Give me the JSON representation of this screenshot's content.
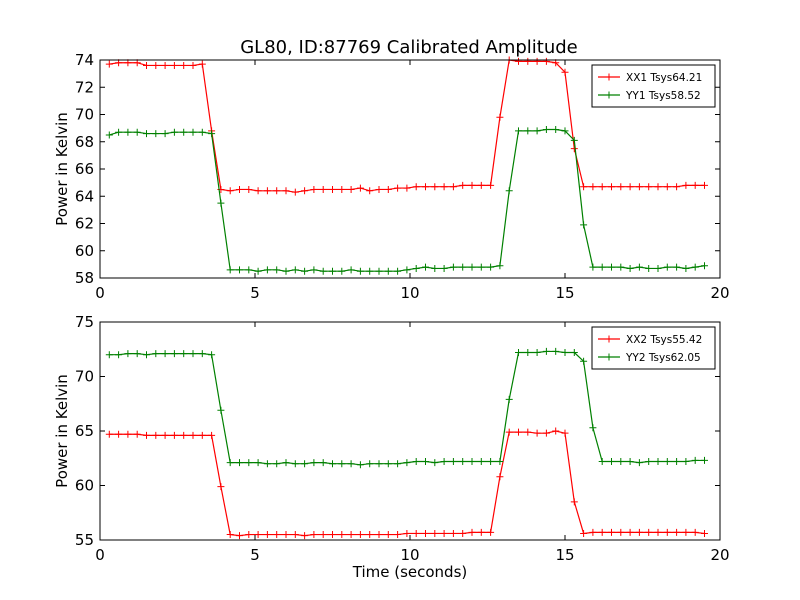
{
  "figure": {
    "title": "GL80, ID:87769 Calibrated Amplitude"
  },
  "chart_data": [
    {
      "type": "line",
      "title": "GL80, ID:87769 Calibrated Amplitude",
      "xlabel": "",
      "ylabel": "Power in Kelvin",
      "xlim": [
        0,
        20
      ],
      "ylim": [
        58,
        74
      ],
      "xticks": [
        0,
        5,
        10,
        15,
        20
      ],
      "yticks": [
        58,
        60,
        62,
        64,
        66,
        68,
        70,
        72,
        74
      ],
      "grid": false,
      "legend_position": "top-right",
      "x": [
        0.3,
        0.6,
        0.9,
        1.2,
        1.5,
        1.8,
        2.1,
        2.4,
        2.7,
        3.0,
        3.3,
        3.6,
        3.9,
        4.2,
        4.5,
        4.8,
        5.1,
        5.4,
        5.7,
        6.0,
        6.3,
        6.6,
        6.9,
        7.2,
        7.5,
        7.8,
        8.1,
        8.4,
        8.7,
        9.0,
        9.3,
        9.6,
        9.9,
        10.2,
        10.5,
        10.8,
        11.1,
        11.4,
        11.7,
        12.0,
        12.3,
        12.6,
        12.9,
        13.2,
        13.5,
        13.8,
        14.1,
        14.4,
        14.7,
        15.0,
        15.3,
        15.6,
        15.9,
        16.2,
        16.5,
        16.8,
        17.1,
        17.4,
        17.7,
        18.0,
        18.3,
        18.6,
        18.9,
        19.2,
        19.5
      ],
      "series": [
        {
          "name": "XX1 Tsys64.21",
          "color": "#ff0000",
          "values": [
            73.7,
            73.8,
            73.8,
            73.8,
            73.6,
            73.6,
            73.6,
            73.6,
            73.6,
            73.6,
            73.7,
            68.8,
            64.5,
            64.4,
            64.5,
            64.5,
            64.4,
            64.4,
            64.4,
            64.4,
            64.3,
            64.4,
            64.5,
            64.5,
            64.5,
            64.5,
            64.5,
            64.6,
            64.4,
            64.5,
            64.5,
            64.6,
            64.6,
            64.7,
            64.7,
            64.7,
            64.7,
            64.7,
            64.8,
            64.8,
            64.8,
            64.8,
            69.8,
            74.0,
            73.9,
            73.9,
            73.9,
            73.9,
            73.8,
            73.1,
            67.5,
            64.7,
            64.7,
            64.7,
            64.7,
            64.7,
            64.7,
            64.7,
            64.7,
            64.7,
            64.7,
            64.7,
            64.8,
            64.8,
            64.8
          ]
        },
        {
          "name": "YY1 Tsys58.52",
          "color": "#008000",
          "values": [
            68.5,
            68.7,
            68.7,
            68.7,
            68.6,
            68.6,
            68.6,
            68.7,
            68.7,
            68.7,
            68.7,
            68.6,
            63.5,
            58.6,
            58.6,
            58.6,
            58.5,
            58.6,
            58.6,
            58.5,
            58.6,
            58.5,
            58.6,
            58.5,
            58.5,
            58.5,
            58.6,
            58.5,
            58.5,
            58.5,
            58.5,
            58.5,
            58.6,
            58.7,
            58.8,
            58.7,
            58.7,
            58.8,
            58.8,
            58.8,
            58.8,
            58.8,
            58.9,
            64.4,
            68.8,
            68.8,
            68.8,
            68.9,
            68.9,
            68.8,
            68.1,
            61.9,
            58.8,
            58.8,
            58.8,
            58.8,
            58.7,
            58.8,
            58.7,
            58.7,
            58.8,
            58.8,
            58.7,
            58.8,
            58.9
          ]
        }
      ]
    },
    {
      "type": "line",
      "title": "",
      "xlabel": "Time (seconds)",
      "ylabel": "Power in Kelvin",
      "xlim": [
        0,
        20
      ],
      "ylim": [
        55,
        75
      ],
      "xticks": [
        0,
        5,
        10,
        15,
        20
      ],
      "yticks": [
        55,
        60,
        65,
        70,
        75
      ],
      "grid": false,
      "legend_position": "top-right",
      "x": [
        0.3,
        0.6,
        0.9,
        1.2,
        1.5,
        1.8,
        2.1,
        2.4,
        2.7,
        3.0,
        3.3,
        3.6,
        3.9,
        4.2,
        4.5,
        4.8,
        5.1,
        5.4,
        5.7,
        6.0,
        6.3,
        6.6,
        6.9,
        7.2,
        7.5,
        7.8,
        8.1,
        8.4,
        8.7,
        9.0,
        9.3,
        9.6,
        9.9,
        10.2,
        10.5,
        10.8,
        11.1,
        11.4,
        11.7,
        12.0,
        12.3,
        12.6,
        12.9,
        13.2,
        13.5,
        13.8,
        14.1,
        14.4,
        14.7,
        15.0,
        15.3,
        15.6,
        15.9,
        16.2,
        16.5,
        16.8,
        17.1,
        17.4,
        17.7,
        18.0,
        18.3,
        18.6,
        18.9,
        19.2,
        19.5
      ],
      "series": [
        {
          "name": "XX2 Tsys55.42",
          "color": "#ff0000",
          "values": [
            64.7,
            64.7,
            64.7,
            64.7,
            64.6,
            64.6,
            64.6,
            64.6,
            64.6,
            64.6,
            64.6,
            64.6,
            59.9,
            55.5,
            55.4,
            55.5,
            55.5,
            55.5,
            55.5,
            55.5,
            55.5,
            55.4,
            55.5,
            55.5,
            55.5,
            55.5,
            55.5,
            55.5,
            55.5,
            55.5,
            55.5,
            55.5,
            55.6,
            55.6,
            55.6,
            55.6,
            55.6,
            55.6,
            55.6,
            55.7,
            55.7,
            55.7,
            60.8,
            64.9,
            64.9,
            64.9,
            64.8,
            64.8,
            65.0,
            64.8,
            58.5,
            55.6,
            55.7,
            55.7,
            55.7,
            55.7,
            55.7,
            55.7,
            55.7,
            55.7,
            55.7,
            55.7,
            55.7,
            55.7,
            55.6
          ]
        },
        {
          "name": "YY2 Tsys62.05",
          "color": "#008000",
          "values": [
            72.0,
            72.0,
            72.1,
            72.1,
            72.0,
            72.1,
            72.1,
            72.1,
            72.1,
            72.1,
            72.1,
            72.0,
            66.9,
            62.1,
            62.1,
            62.1,
            62.1,
            62.0,
            62.0,
            62.1,
            62.0,
            62.0,
            62.1,
            62.1,
            62.0,
            62.0,
            62.0,
            61.9,
            62.0,
            62.0,
            62.0,
            62.0,
            62.1,
            62.2,
            62.2,
            62.1,
            62.2,
            62.2,
            62.2,
            62.2,
            62.2,
            62.2,
            62.2,
            67.9,
            72.2,
            72.2,
            72.2,
            72.3,
            72.3,
            72.2,
            72.2,
            71.4,
            65.3,
            62.2,
            62.2,
            62.2,
            62.2,
            62.1,
            62.2,
            62.2,
            62.2,
            62.2,
            62.2,
            62.3,
            62.3
          ]
        }
      ]
    }
  ]
}
